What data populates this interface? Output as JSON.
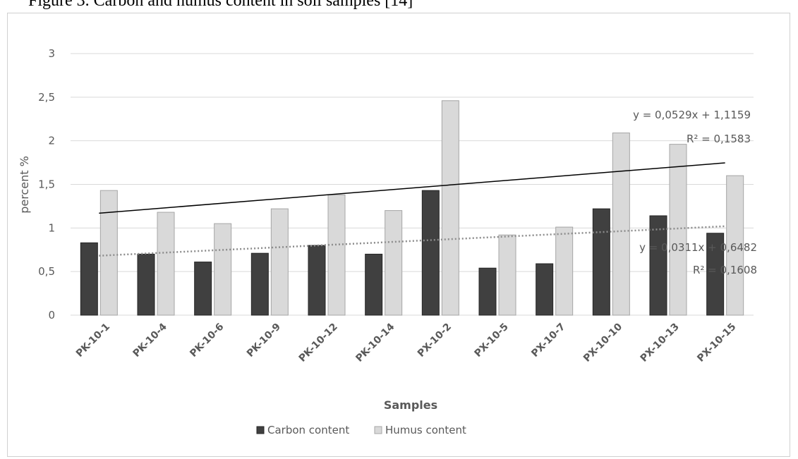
{
  "caption": "Figure 3. Carbon and humus content in soil samples [14]",
  "chart_data": {
    "type": "bar",
    "title": "",
    "xlabel": "Samples",
    "ylabel": "percent %",
    "ylim": [
      0,
      3
    ],
    "yticks": [
      "0",
      "0,5",
      "1",
      "1,5",
      "2",
      "2,5",
      "3"
    ],
    "grid": true,
    "legend_position": "bottom",
    "categories": [
      "PK-10-1",
      "PK-10-4",
      "PK-10-6",
      "PK-10-9",
      "PK-10-12",
      "PK-10-14",
      "PX-10-2",
      "PX-10-5",
      "PX-10-7",
      "PX-10-10",
      "PX-10-13",
      "PX-10-15"
    ],
    "series": [
      {
        "name": "Carbon content",
        "color": "#404040",
        "values": [
          0.83,
          0.7,
          0.61,
          0.71,
          0.8,
          0.7,
          1.43,
          0.54,
          0.59,
          1.22,
          1.14,
          0.94
        ],
        "trendline": {
          "style": "dotted",
          "color": "#8c8c8c",
          "equation": "y = 0,0311x + 0,6482",
          "r2": "R² = 0,1608"
        }
      },
      {
        "name": "Humus content",
        "color": "#d9d9d9",
        "values": [
          1.43,
          1.18,
          1.05,
          1.22,
          1.38,
          1.2,
          2.46,
          0.92,
          1.01,
          2.09,
          1.96,
          1.6
        ],
        "trendline": {
          "style": "solid",
          "color": "#000000",
          "equation": "y = 0,0529x + 1,1159",
          "r2": "R² = 0,1583"
        }
      }
    ]
  }
}
